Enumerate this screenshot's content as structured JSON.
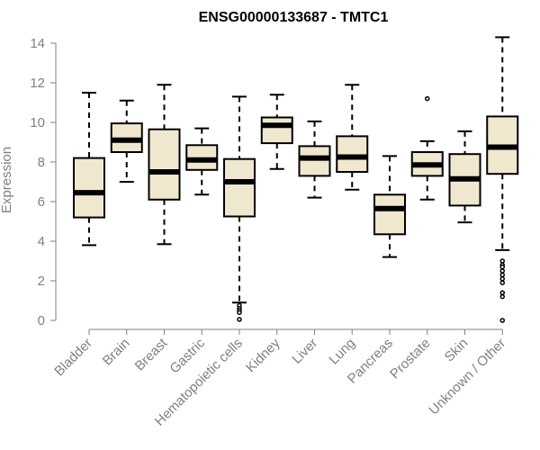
{
  "chart_data": {
    "type": "boxplot",
    "title": "ENSG00000133687 - TMTC1",
    "xlabel": "",
    "ylabel": "Expression",
    "ylim": [
      0,
      14
    ],
    "yticks": [
      0,
      2,
      4,
      6,
      8,
      10,
      12,
      14
    ],
    "grid": false,
    "colors": {
      "box_fill": "#efe8cf",
      "box_stroke": "#000000",
      "axis": "#808080",
      "text": "#808080"
    },
    "categories": [
      "Bladder",
      "Brain",
      "Breast",
      "Gastric",
      "Hematopoietic cells",
      "Kidney",
      "Liver",
      "Lung",
      "Pancreas",
      "Prostate",
      "Skin",
      "Unknown / Other"
    ],
    "boxes": [
      {
        "name": "Bladder",
        "min": 3.8,
        "q1": 5.2,
        "median": 6.45,
        "q3": 8.2,
        "max": 11.5,
        "outliers": []
      },
      {
        "name": "Brain",
        "min": 7.0,
        "q1": 8.5,
        "median": 9.1,
        "q3": 9.95,
        "max": 11.1,
        "outliers": []
      },
      {
        "name": "Breast",
        "min": 3.85,
        "q1": 6.1,
        "median": 7.5,
        "q3": 9.65,
        "max": 11.9,
        "outliers": []
      },
      {
        "name": "Gastric",
        "min": 6.35,
        "q1": 7.6,
        "median": 8.1,
        "q3": 8.85,
        "max": 9.7,
        "outliers": []
      },
      {
        "name": "Hematopoietic cells",
        "min": 0.9,
        "q1": 5.25,
        "median": 7.0,
        "q3": 8.15,
        "max": 11.3,
        "outliers": [
          0.75,
          0.6,
          0.5,
          0.4,
          0.05
        ]
      },
      {
        "name": "Kidney",
        "min": 7.65,
        "q1": 8.95,
        "median": 9.85,
        "q3": 10.25,
        "max": 11.4,
        "outliers": []
      },
      {
        "name": "Liver",
        "min": 6.2,
        "q1": 7.3,
        "median": 8.2,
        "q3": 8.8,
        "max": 10.05,
        "outliers": []
      },
      {
        "name": "Lung",
        "min": 6.6,
        "q1": 7.5,
        "median": 8.25,
        "q3": 9.3,
        "max": 11.9,
        "outliers": []
      },
      {
        "name": "Pancreas",
        "min": 3.2,
        "q1": 4.35,
        "median": 5.65,
        "q3": 6.35,
        "max": 8.3,
        "outliers": []
      },
      {
        "name": "Prostate",
        "min": 6.1,
        "q1": 7.3,
        "median": 7.85,
        "q3": 8.5,
        "max": 9.05,
        "outliers": [
          11.2
        ]
      },
      {
        "name": "Skin",
        "min": 4.95,
        "q1": 5.8,
        "median": 7.15,
        "q3": 8.4,
        "max": 9.55,
        "outliers": []
      },
      {
        "name": "Unknown / Other",
        "min": 3.55,
        "q1": 7.4,
        "median": 8.75,
        "q3": 10.3,
        "max": 14.3,
        "outliers": [
          3.0,
          2.8,
          2.7,
          2.5,
          2.3,
          2.1,
          1.9,
          1.4,
          1.2,
          0.0
        ]
      }
    ]
  }
}
